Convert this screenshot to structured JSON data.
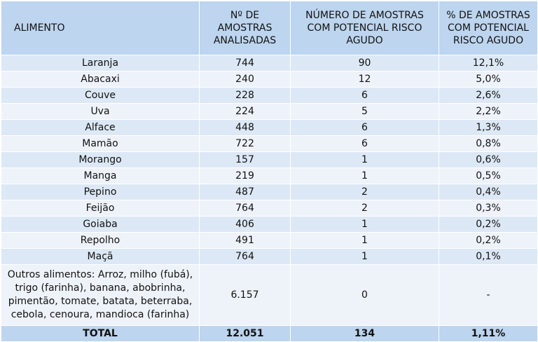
{
  "table": {
    "headers": [
      "ALIMENTO",
      "Nº DE AMOSTRAS ANALISADAS",
      "NÚMERO DE AMOSTRAS COM POTENCIAL RISCO AGUDO",
      "% DE AMOSTRAS COM POTENCIAL RISCO AGUDO"
    ],
    "rows": [
      [
        "Laranja",
        "744",
        "90",
        "12,1%"
      ],
      [
        "Abacaxi",
        "240",
        "12",
        "5,0%"
      ],
      [
        "Couve",
        "228",
        "6",
        "2,6%"
      ],
      [
        "Uva",
        "224",
        "5",
        "2,2%"
      ],
      [
        "Alface",
        "448",
        "6",
        "1,3%"
      ],
      [
        "Mamão",
        "722",
        "6",
        "0,8%"
      ],
      [
        "Morango",
        "157",
        "1",
        "0,6%"
      ],
      [
        "Manga",
        "219",
        "1",
        "0,5%"
      ],
      [
        "Pepino",
        "487",
        "2",
        "0,4%"
      ],
      [
        "Feijão",
        "764",
        "2",
        "0,3%"
      ],
      [
        "Goiaba",
        "406",
        "1",
        "0,2%"
      ],
      [
        "Repolho",
        "491",
        "1",
        "0,2%"
      ],
      [
        "Maçã",
        "764",
        "1",
        "0,1%"
      ],
      [
        "Outros alimentos: Arroz, milho (fubá), trigo (farinha), banana, abobrinha, pimentão, tomate, batata, beterraba, cebola, cenoura, mandioca (farinha)",
        "6.157",
        "0",
        "-"
      ]
    ],
    "total": [
      "TOTAL",
      "12.051",
      "134",
      "1,11%"
    ]
  }
}
